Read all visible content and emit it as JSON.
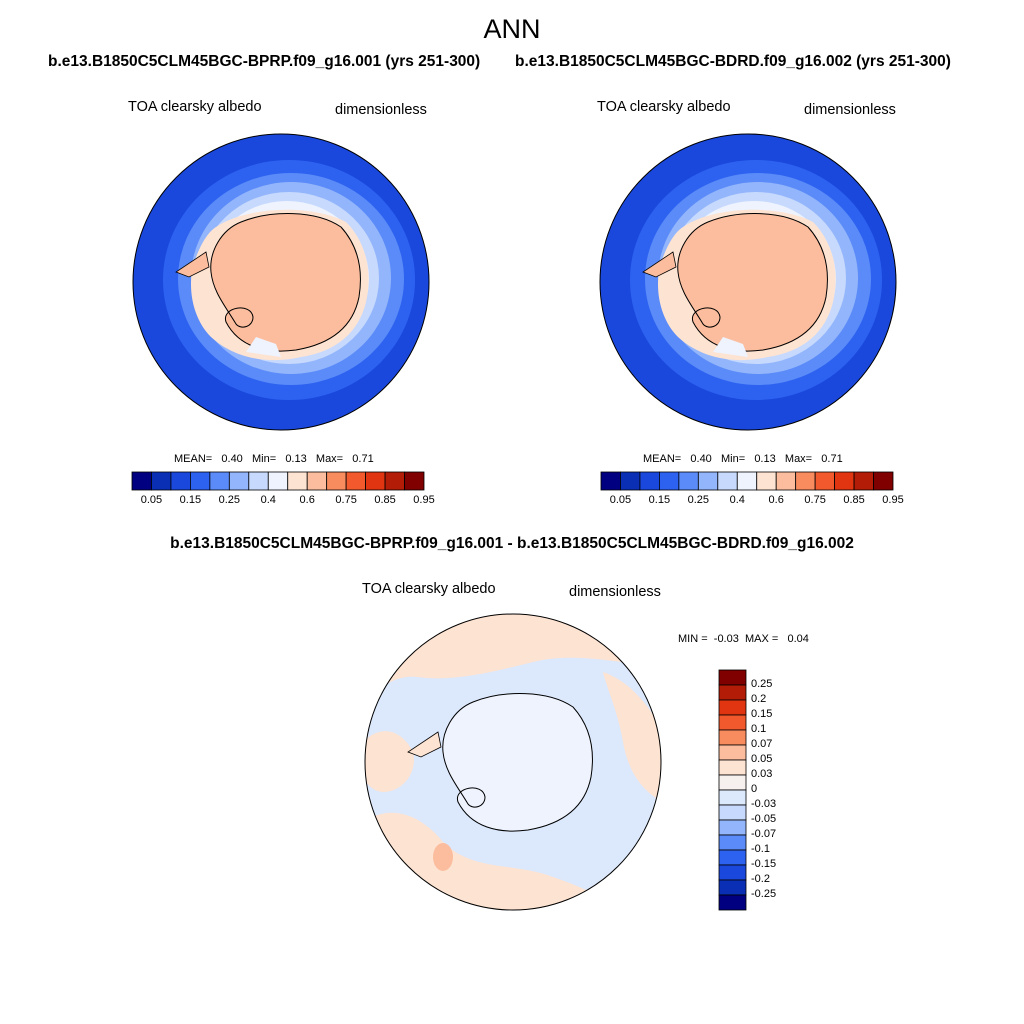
{
  "page": {
    "title": "ANN",
    "case1_title": "b.e13.B1850C5CLM45BGC-BPRP.f09_g16.001 (yrs 251-300)",
    "case2_title": "b.e13.B1850C5CLM45BGC-BDRD.f09_g16.002 (yrs 251-300)",
    "diff_title": "b.e13.B1850C5CLM45BGC-BPRP.f09_g16.001 - b.e13.B1850C5CLM45BGC-BDRD.f09_g16.002"
  },
  "chart_data": [
    {
      "type": "heatmap",
      "projection": "south polar stereographic",
      "variable": "TOA clearsky albedo",
      "units": "dimensionless",
      "stats": {
        "mean_label": "MEAN=",
        "mean": "0.40",
        "min_label": "Min=",
        "min": "0.13",
        "max_label": "Max=",
        "max": "0.71"
      },
      "colorbar": {
        "orientation": "horizontal",
        "levels": [
          0.05,
          0.1,
          0.15,
          0.2,
          0.25,
          0.3,
          0.4,
          0.5,
          0.6,
          0.7,
          0.75,
          0.8,
          0.85,
          0.9,
          0.95
        ],
        "tick_labels": [
          "0.05",
          "0.15",
          "0.25",
          "0.4",
          "0.6",
          "0.75",
          "0.85",
          "0.95"
        ],
        "colors": [
          "#000080",
          "#0a2fb5",
          "#1a48dc",
          "#2d62f0",
          "#5a8bf8",
          "#93b5fb",
          "#c7dafd",
          "#eef3fe",
          "#fde3d2",
          "#fbbd9e",
          "#f88c5f",
          "#f25a2d",
          "#e03510",
          "#b31c07",
          "#800000"
        ]
      }
    },
    {
      "type": "heatmap",
      "projection": "south polar stereographic",
      "variable": "TOA clearsky albedo",
      "units": "dimensionless",
      "stats": {
        "mean_label": "MEAN=",
        "mean": "0.40",
        "min_label": "Min=",
        "min": "0.13",
        "max_label": "Max=",
        "max": "0.71"
      },
      "colorbar": {
        "orientation": "horizontal",
        "levels": [
          0.05,
          0.1,
          0.15,
          0.2,
          0.25,
          0.3,
          0.4,
          0.5,
          0.6,
          0.7,
          0.75,
          0.8,
          0.85,
          0.9,
          0.95
        ],
        "tick_labels": [
          "0.05",
          "0.15",
          "0.25",
          "0.4",
          "0.6",
          "0.75",
          "0.85",
          "0.95"
        ],
        "colors": [
          "#000080",
          "#0a2fb5",
          "#1a48dc",
          "#2d62f0",
          "#5a8bf8",
          "#93b5fb",
          "#c7dafd",
          "#eef3fe",
          "#fde3d2",
          "#fbbd9e",
          "#f88c5f",
          "#f25a2d",
          "#e03510",
          "#b31c07",
          "#800000"
        ]
      }
    },
    {
      "type": "heatmap",
      "projection": "south polar stereographic",
      "variable": "TOA clearsky albedo",
      "units": "dimensionless",
      "stats": {
        "min_label": "MIN =",
        "min": "-0.03",
        "max_label": "MAX =",
        "max": "0.04"
      },
      "colorbar": {
        "orientation": "vertical",
        "tick_labels": [
          "0.25",
          "0.2",
          "0.15",
          "0.1",
          "0.07",
          "0.05",
          "0.03",
          "0",
          "-0.03",
          "-0.05",
          "-0.07",
          "-0.1",
          "-0.15",
          "-0.2",
          "-0.25"
        ],
        "colors": [
          "#800000",
          "#b31c07",
          "#e03510",
          "#f25a2d",
          "#f88c5f",
          "#fbbd9e",
          "#fde3d2",
          "#f6f0ee",
          "#dce8fc",
          "#c7dafd",
          "#93b5fb",
          "#5a8bf8",
          "#2d62f0",
          "#1a48dc",
          "#0a2fb5",
          "#000080"
        ]
      }
    }
  ]
}
